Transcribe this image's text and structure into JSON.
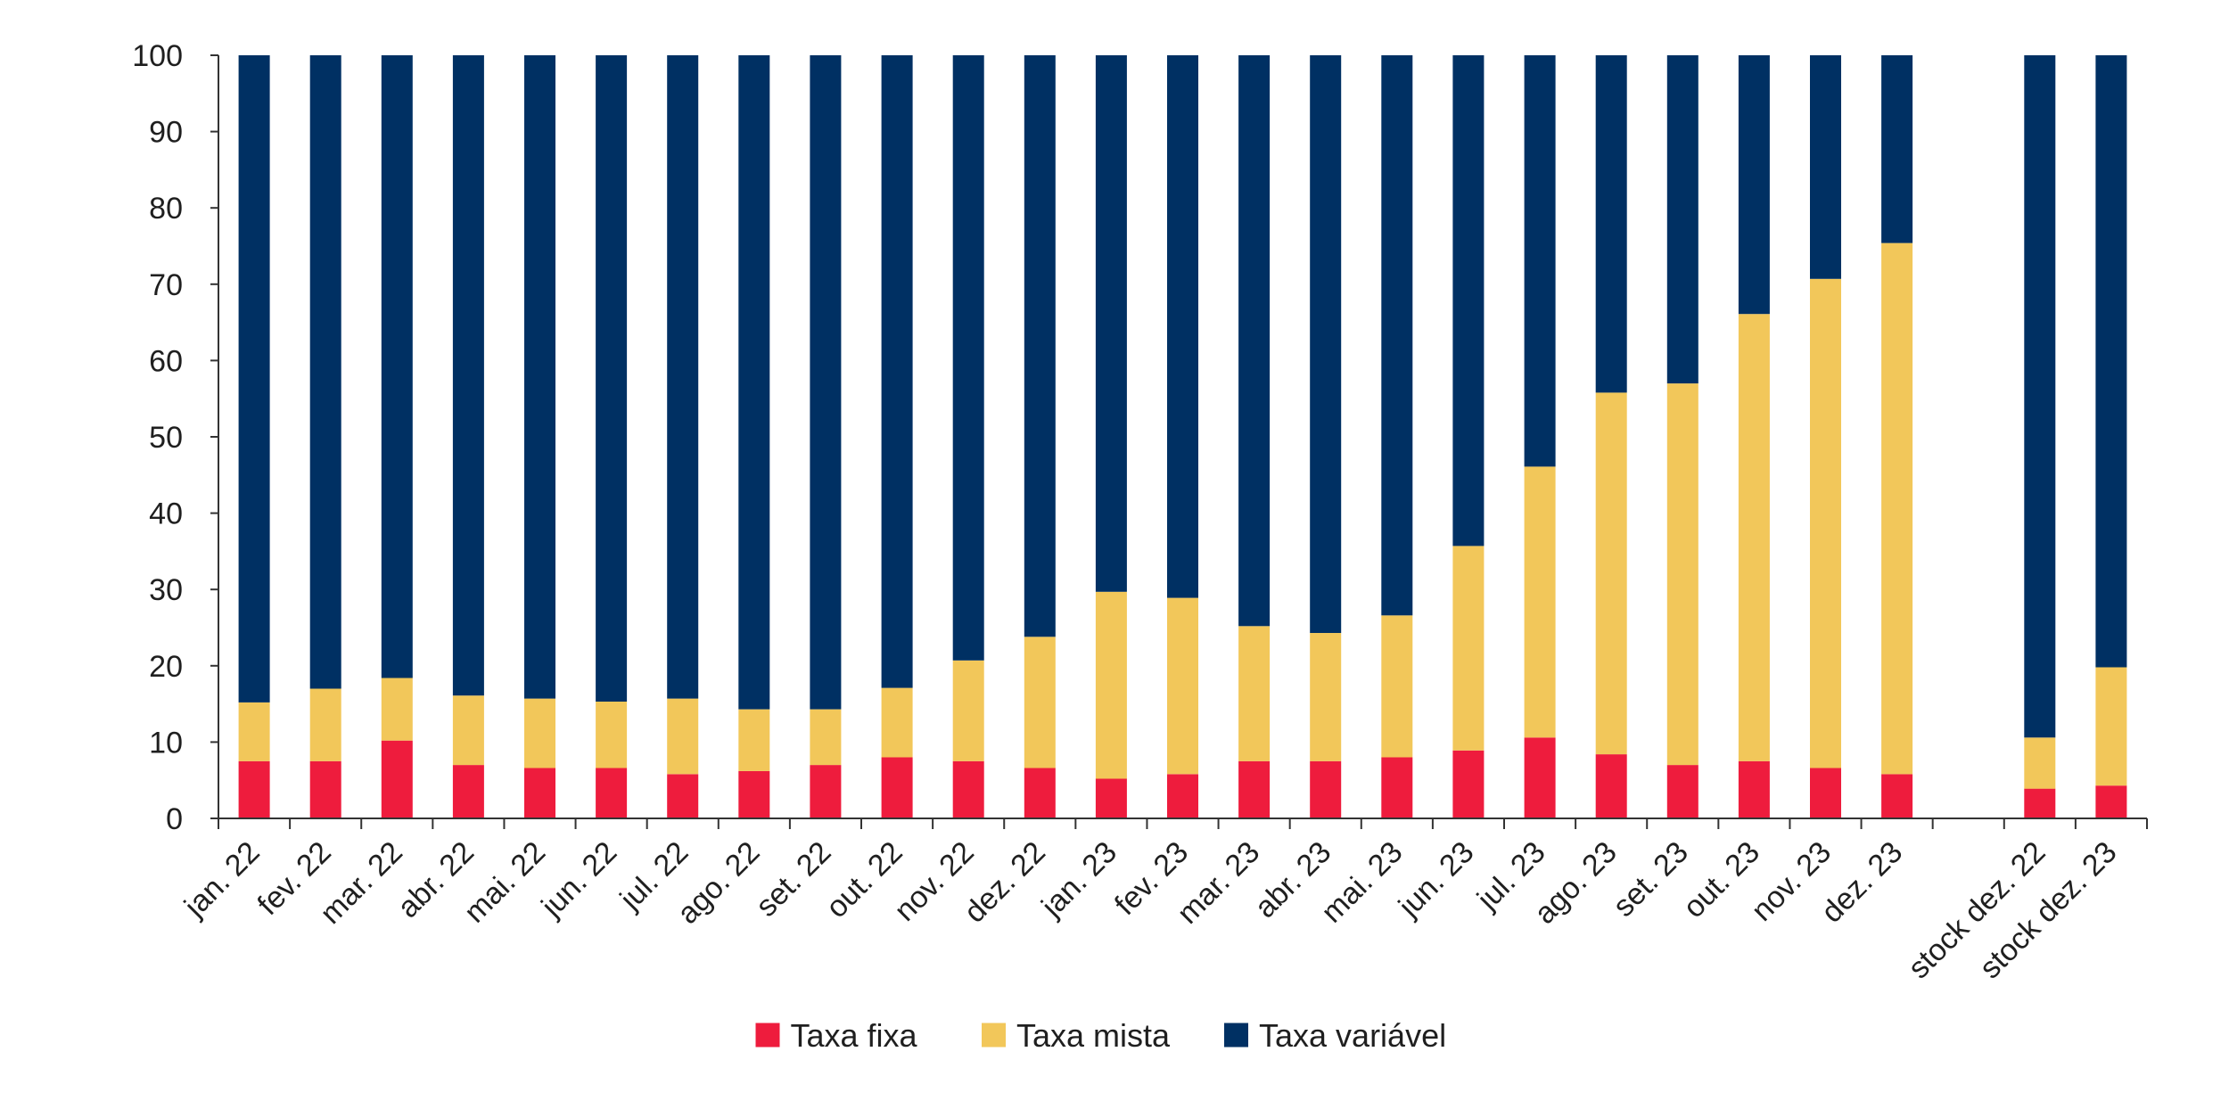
{
  "chart_data": {
    "type": "bar",
    "stacked": true,
    "categories": [
      "jan. 22",
      "fev. 22",
      "mar. 22",
      "abr. 22",
      "mai. 22",
      "jun. 22",
      "jul. 22",
      "ago. 22",
      "set. 22",
      "out. 22",
      "nov. 22",
      "dez. 22",
      "jan. 23",
      "fev. 23",
      "mar. 23",
      "abr. 23",
      "mai. 23",
      "jun. 23",
      "jul. 23",
      "ago. 23",
      "set. 23",
      "out. 23",
      "nov. 23",
      "dez. 23",
      "",
      "stock dez. 22",
      "stock dez. 23"
    ],
    "series": [
      {
        "name": "Taxa fixa",
        "color": "#ee1c3d",
        "values": [
          7.5,
          7.5,
          10.2,
          7.0,
          6.6,
          6.6,
          5.8,
          6.2,
          7.0,
          8.0,
          7.5,
          6.6,
          5.2,
          5.8,
          7.5,
          7.5,
          8.0,
          8.9,
          10.6,
          8.4,
          7.0,
          7.5,
          6.6,
          5.8,
          null,
          3.9,
          4.3
        ]
      },
      {
        "name": "Taxa mista",
        "color": "#f2c75a",
        "values": [
          7.7,
          9.5,
          8.2,
          9.1,
          9.1,
          8.7,
          9.9,
          8.1,
          7.3,
          9.1,
          13.2,
          17.2,
          24.5,
          23.1,
          17.7,
          16.8,
          18.6,
          26.8,
          35.5,
          47.4,
          50.0,
          58.6,
          64.1,
          69.6,
          null,
          6.7,
          15.5
        ]
      },
      {
        "name": "Taxa variável",
        "color": "#003063",
        "values": [
          84.8,
          83.0,
          81.6,
          83.9,
          84.3,
          84.7,
          84.3,
          85.7,
          85.7,
          82.9,
          79.3,
          76.2,
          70.3,
          71.1,
          74.8,
          75.7,
          73.4,
          64.3,
          53.9,
          44.2,
          43.0,
          33.9,
          29.3,
          24.6,
          null,
          89.4,
          80.2
        ]
      }
    ],
    "y_ticks": [
      "0",
      "10",
      "20",
      "30",
      "40",
      "50",
      "60",
      "70",
      "80",
      "90",
      "100"
    ],
    "ylim": [
      0,
      100
    ],
    "legend_position": "bottom-center",
    "grid": false
  }
}
